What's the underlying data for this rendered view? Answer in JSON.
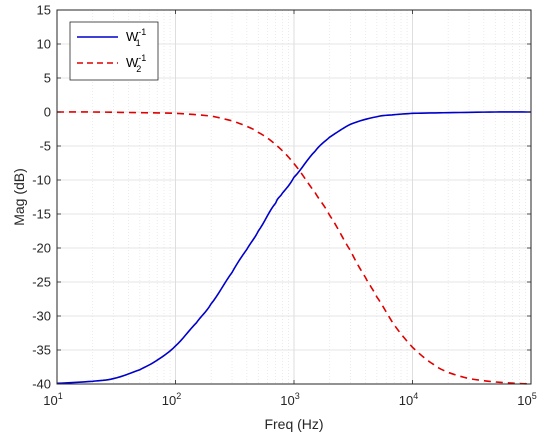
{
  "chart_data": {
    "type": "line",
    "xlabel": "Freq (Hz)",
    "ylabel": "Mag (dB)",
    "x_scale": "log",
    "xlim": [
      10,
      100000
    ],
    "ylim": [
      -40,
      15
    ],
    "x_ticks": [
      {
        "base": "10",
        "exp": "1",
        "value": 10
      },
      {
        "base": "10",
        "exp": "2",
        "value": 100
      },
      {
        "base": "10",
        "exp": "3",
        "value": 1000
      },
      {
        "base": "10",
        "exp": "4",
        "value": 10000
      },
      {
        "base": "10",
        "exp": "5",
        "value": 100000
      }
    ],
    "y_ticks": [
      "15",
      "10",
      "5",
      "0",
      "-5",
      "-10",
      "-15",
      "-20",
      "-25",
      "-30",
      "-35",
      "-40"
    ],
    "grid": true,
    "legend_position": "top-left",
    "series": [
      {
        "name": "W",
        "name_sup": "-1",
        "name_sub": "1",
        "color": "#0000cc",
        "style": "solid",
        "x": [
          10,
          20,
          30,
          50,
          70,
          100,
          150,
          200,
          300,
          400,
          500,
          700,
          800,
          1000,
          1500,
          2000,
          3000,
          5000,
          7000,
          10000,
          20000,
          50000,
          100000
        ],
        "y": [
          -39.9,
          -39.6,
          -39.2,
          -37.9,
          -36.5,
          -34.4,
          -31.0,
          -28.2,
          -23.6,
          -20.2,
          -17.5,
          -13.4,
          -11.9,
          -9.6,
          -5.8,
          -3.7,
          -1.8,
          -0.7,
          -0.4,
          -0.2,
          -0.1,
          0.0,
          0.0
        ]
      },
      {
        "name": "W",
        "name_sup": "-1",
        "name_sub": "2",
        "color": "#e00000",
        "style": "dashed",
        "x": [
          10,
          20,
          50,
          100,
          200,
          300,
          400,
          500,
          700,
          1000,
          1500,
          2000,
          3000,
          4000,
          5000,
          7000,
          10000,
          15000,
          20000,
          30000,
          50000,
          100000
        ],
        "y": [
          0.0,
          0.0,
          -0.1,
          -0.2,
          -0.6,
          -1.3,
          -2.1,
          -3.0,
          -4.8,
          -7.6,
          -11.8,
          -15.2,
          -20.4,
          -24.3,
          -27.2,
          -31.3,
          -34.6,
          -37.1,
          -38.3,
          -39.2,
          -39.7,
          -40.0
        ]
      }
    ]
  }
}
